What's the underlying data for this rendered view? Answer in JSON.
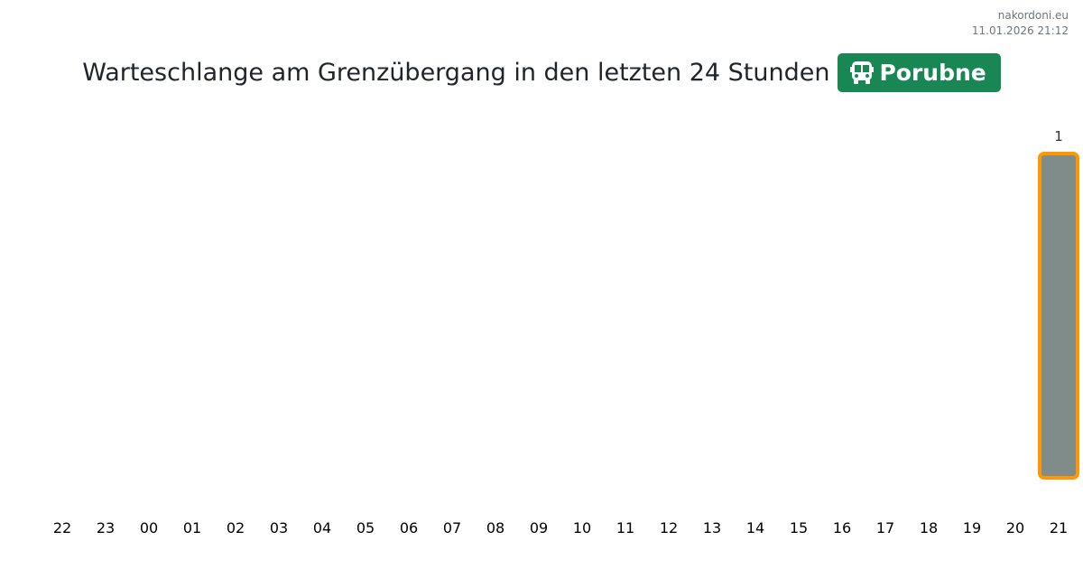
{
  "site": {
    "name": "nakordoni.eu",
    "timestamp": "11.01.2026 21:12"
  },
  "header": {
    "title": "Warteschlange am Grenzübergang in den letzten 24 Stunden",
    "badge_label": "Porubne",
    "badge_icon": "bus-icon",
    "badge_color": "#198754"
  },
  "chart_data": {
    "type": "bar",
    "categories": [
      "22",
      "23",
      "00",
      "01",
      "02",
      "03",
      "04",
      "05",
      "06",
      "07",
      "08",
      "09",
      "10",
      "11",
      "12",
      "13",
      "14",
      "15",
      "16",
      "17",
      "18",
      "19",
      "20",
      "21"
    ],
    "values": [
      0,
      0,
      0,
      0,
      0,
      0,
      0,
      0,
      0,
      0,
      0,
      0,
      0,
      0,
      0,
      0,
      0,
      0,
      0,
      0,
      0,
      0,
      0,
      1
    ],
    "ylim": [
      0,
      1
    ],
    "grid": false,
    "bar_color": "#7f8c8a",
    "bar_border_color": "#ff9800"
  }
}
